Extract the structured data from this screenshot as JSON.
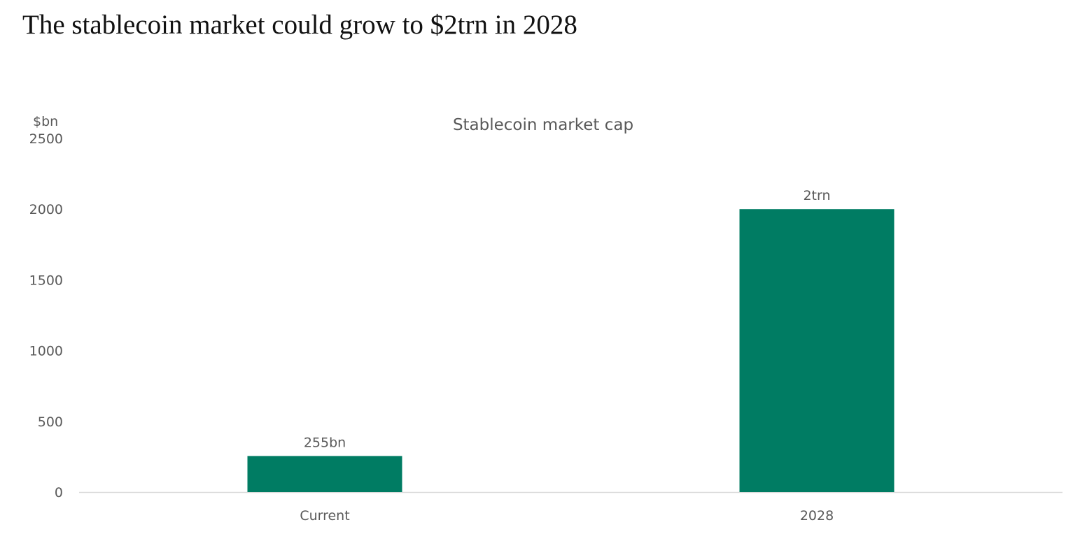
{
  "page": {
    "title": "The stablecoin market could grow to $2trn in 2028"
  },
  "chart_data": {
    "type": "bar",
    "title": "Stablecoin market cap",
    "ylabel": "$bn",
    "xlabel": "",
    "categories": [
      "Current",
      "2028"
    ],
    "values": [
      255,
      2000
    ],
    "data_labels": [
      "255bn",
      "2trn"
    ],
    "ylim": [
      0,
      2500
    ],
    "yticks": [
      0,
      500,
      1000,
      1500,
      2000,
      2500
    ],
    "grid": false,
    "legend": "none",
    "bar_color": "#007c63",
    "text_color": "#595959",
    "axis_color": "#d9d9d9"
  }
}
